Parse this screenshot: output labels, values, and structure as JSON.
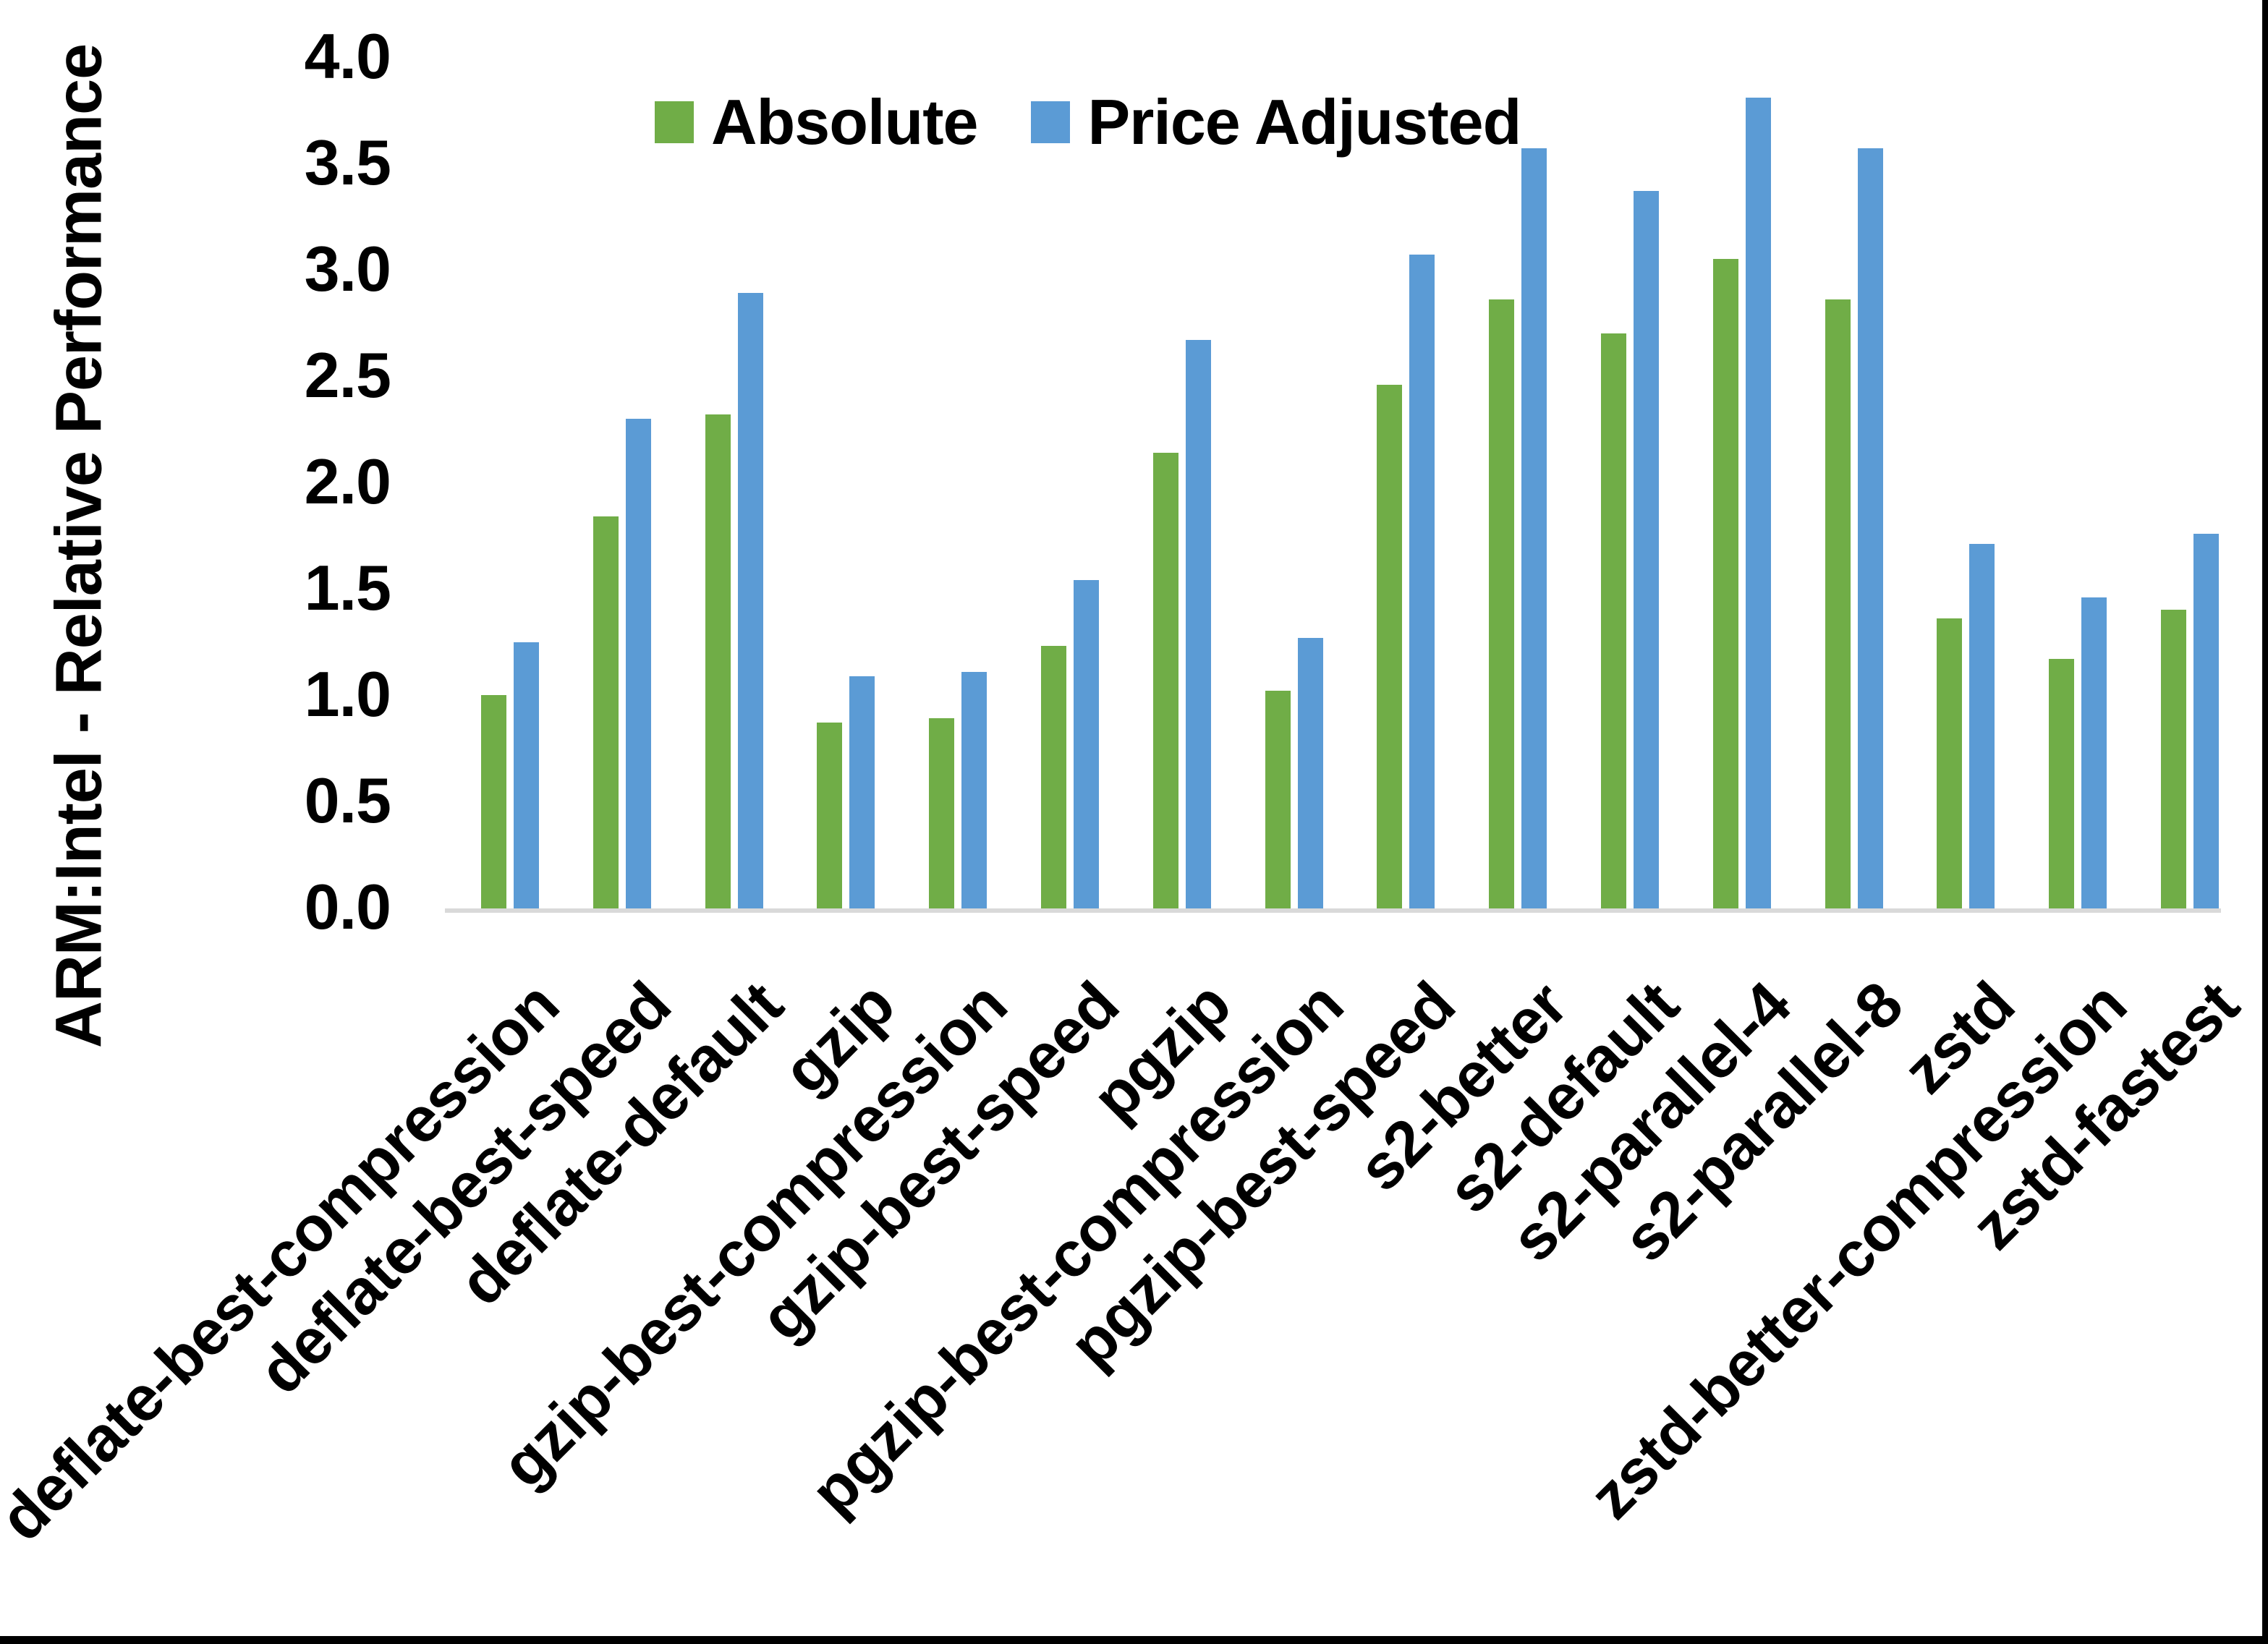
{
  "chart_data": {
    "type": "bar",
    "title": "",
    "ylabel": "ARM:Intel - Relative Performance",
    "xlabel": "",
    "categories": [
      "deflate-best-compression",
      "deflate-best-speed",
      "deflate-default",
      "gzip",
      "gzip-best-compression",
      "gzip-best-speed",
      "pgzip",
      "pgzip-best-compression",
      "pgzip-best-speed",
      "s2-better",
      "s2-default",
      "s2-parallel-4",
      "s2-parallel-8",
      "zstd",
      "zstd-better-compression",
      "zstd-fastest"
    ],
    "series": [
      {
        "name": "Absolute",
        "color": "#70AD47",
        "values": [
          1.01,
          1.85,
          2.33,
          0.88,
          0.9,
          1.24,
          2.15,
          1.03,
          2.47,
          2.87,
          2.71,
          3.06,
          2.87,
          1.37,
          1.18,
          1.41
        ]
      },
      {
        "name": "Price Adjusted",
        "color": "#5B9BD5",
        "values": [
          1.26,
          2.31,
          2.9,
          1.1,
          1.12,
          1.55,
          2.68,
          1.28,
          3.08,
          3.58,
          3.38,
          3.82,
          3.58,
          1.72,
          1.47,
          1.77
        ]
      }
    ],
    "ylim": [
      0,
      4
    ],
    "ytick_step": 0.5,
    "ytick_labels": [
      "0.0",
      "0.5",
      "1.0",
      "1.5",
      "2.0",
      "2.5",
      "3.0",
      "3.5",
      "4.0"
    ],
    "grid": false,
    "legend_position": "top-center",
    "category_label_rotation_deg": 45
  },
  "colors": {
    "background": "#FFFFFF",
    "axis_line": "#D9D9D9",
    "text": "#000000",
    "frame_border": "#000000"
  }
}
